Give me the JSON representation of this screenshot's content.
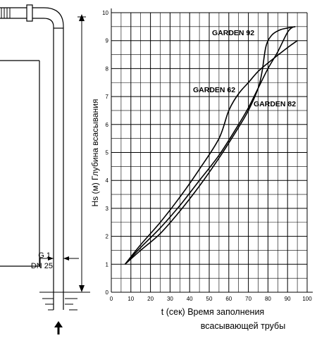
{
  "chart_data": {
    "type": "line",
    "title": "",
    "xlabel_line1": "t (сек) Время заполнения",
    "xlabel_line2": "всасывающей трубы",
    "ylabel": "Hs (м) Глубина всасывания",
    "xlim": [
      0,
      100
    ],
    "ylim": [
      0,
      10
    ],
    "x_ticks": [
      "0",
      "10",
      "20",
      "30",
      "40",
      "50",
      "60",
      "70",
      "80",
      "90",
      "100"
    ],
    "y_ticks": [
      "0",
      "1",
      "2",
      "3",
      "4",
      "5",
      "6",
      "7",
      "8",
      "9",
      "10"
    ],
    "grid": true,
    "series": [
      {
        "name": "GARDEN 62",
        "x": [
          7,
          15,
          25,
          35,
          45,
          55,
          60,
          65,
          70,
          75,
          80,
          90,
          95
        ],
        "y": [
          1,
          1.7,
          2.5,
          3.4,
          4.4,
          5.5,
          6.5,
          7.1,
          7.5,
          7.9,
          8.2,
          8.75,
          9.0
        ]
      },
      {
        "name": "GARDEN 82",
        "x": [
          7,
          15,
          25,
          35,
          45,
          55,
          65,
          70,
          75,
          80,
          85,
          90,
          93
        ],
        "y": [
          1,
          1.6,
          2.3,
          3.1,
          4.0,
          4.9,
          6.0,
          6.6,
          7.3,
          8.0,
          8.6,
          9.3,
          9.5
        ]
      },
      {
        "name": "GARDEN 92",
        "x": [
          7,
          15,
          25,
          35,
          45,
          55,
          65,
          70,
          75,
          77,
          79,
          82,
          86,
          90,
          94
        ],
        "y": [
          1,
          1.5,
          2.1,
          2.9,
          3.8,
          4.8,
          5.9,
          6.5,
          7.3,
          7.9,
          8.8,
          9.2,
          9.38,
          9.45,
          9.5
        ]
      }
    ]
  },
  "diagram": {
    "pipe_size_line1": "G 1",
    "pipe_size_line2": "DN 25"
  }
}
